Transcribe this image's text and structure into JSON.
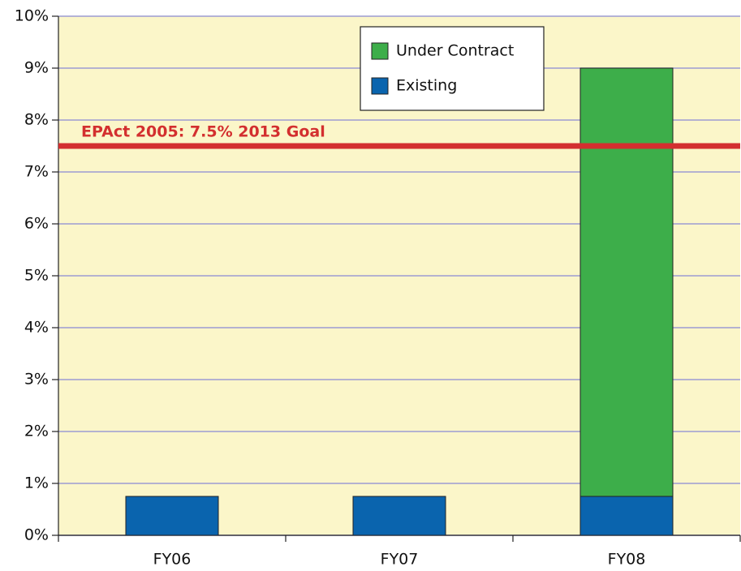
{
  "chart_data": {
    "type": "stacked_bar",
    "categories": [
      "FY06",
      "FY07",
      "FY08"
    ],
    "series": [
      {
        "name": "Existing",
        "color": "#0a64ae",
        "values": [
          0.75,
          0.75,
          0.75
        ]
      },
      {
        "name": "Under Contract",
        "color": "#3dae4a",
        "values": [
          0,
          0,
          8.25
        ]
      }
    ],
    "ylim": [
      0,
      10
    ],
    "yticks": [
      {
        "value": 0,
        "label": "0%"
      },
      {
        "value": 1,
        "label": "1%"
      },
      {
        "value": 2,
        "label": "2%"
      },
      {
        "value": 3,
        "label": "3%"
      },
      {
        "value": 4,
        "label": "4%"
      },
      {
        "value": 5,
        "label": "5%"
      },
      {
        "value": 6,
        "label": "6%"
      },
      {
        "value": 7,
        "label": "7%"
      },
      {
        "value": 8,
        "label": "8%"
      },
      {
        "value": 9,
        "label": "9%"
      },
      {
        "value": 10,
        "label": "10%"
      }
    ],
    "grid": true,
    "legend": "top",
    "reference_line": {
      "value": 7.5,
      "label": "EPAct 2005: 7.5% 2013 Goal",
      "color": "#d32f2f"
    }
  }
}
